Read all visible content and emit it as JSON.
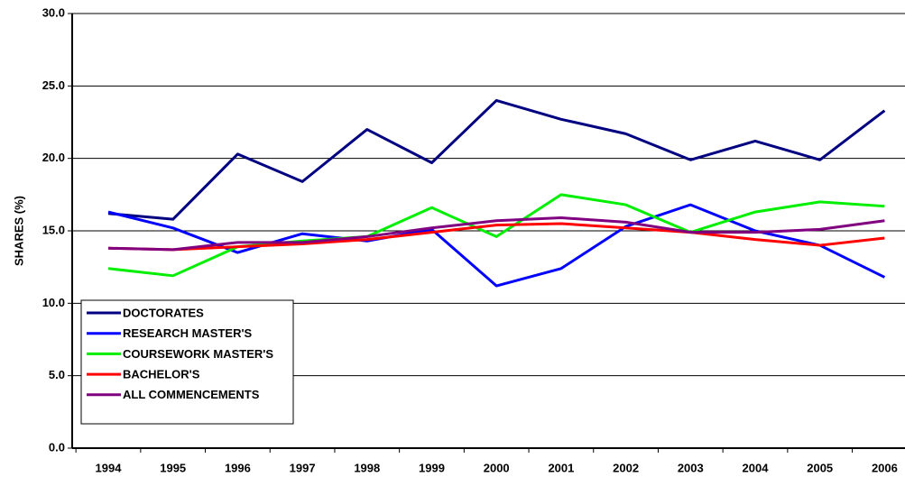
{
  "chart_data": {
    "type": "line",
    "y_label": "SHARES (%)",
    "categories": [
      "1994",
      "1995",
      "1996",
      "1997",
      "1998",
      "1999",
      "2000",
      "2001",
      "2002",
      "2003",
      "2004",
      "2005",
      "2006"
    ],
    "series": [
      {
        "name": "DOCTORATES",
        "color": "#000080",
        "values": [
          16.2,
          15.8,
          20.3,
          18.4,
          22.0,
          19.7,
          24.0,
          22.7,
          21.7,
          19.9,
          21.2,
          19.9,
          23.3
        ]
      },
      {
        "name": "RESEARCH MASTER'S",
        "color": "#0000ff",
        "values": [
          16.3,
          15.2,
          13.5,
          14.8,
          14.3,
          15.1,
          11.2,
          12.4,
          15.3,
          16.8,
          15.0,
          14.0,
          11.8
        ]
      },
      {
        "name": "COURSEWORK MASTER'S",
        "color": "#00ee00",
        "values": [
          12.4,
          11.9,
          13.9,
          14.3,
          14.6,
          16.6,
          14.6,
          17.5,
          16.8,
          14.9,
          16.3,
          17.0,
          16.7
        ]
      },
      {
        "name": "BACHELOR'S",
        "color": "#ff0000",
        "values": [
          13.8,
          13.7,
          13.9,
          14.1,
          14.4,
          14.9,
          15.4,
          15.5,
          15.2,
          14.9,
          14.4,
          14.0,
          14.5
        ]
      },
      {
        "name": "ALL COMMENCEMENTS",
        "color": "#800080",
        "values": [
          13.8,
          13.7,
          14.2,
          14.2,
          14.6,
          15.2,
          15.7,
          15.9,
          15.6,
          14.9,
          14.9,
          15.1,
          15.7
        ]
      }
    ],
    "ylim": [
      0,
      30
    ],
    "yticks": [
      {
        "value": 0,
        "label": "0.0"
      },
      {
        "value": 5,
        "label": "5.0"
      },
      {
        "value": 10,
        "label": "10.0"
      },
      {
        "value": 15,
        "label": "15.0"
      },
      {
        "value": 20,
        "label": "20.0"
      },
      {
        "value": 25,
        "label": "25.0"
      },
      {
        "value": 30,
        "label": "30.0"
      }
    ],
    "grid": true,
    "legend": "lower left"
  }
}
